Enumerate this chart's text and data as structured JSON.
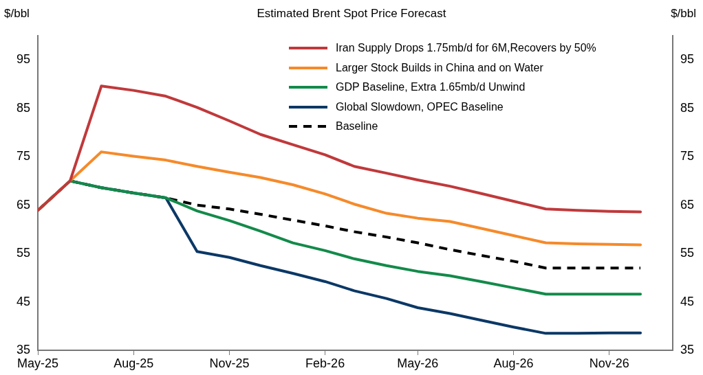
{
  "chart_data": {
    "type": "line",
    "title": "Estimated Brent Spot Price Forecast",
    "ylabel": "$/bbl",
    "y2label": "$/bbl",
    "x": [
      "2025-05",
      "2025-06",
      "2025-07",
      "2025-08",
      "2025-09",
      "2025-10",
      "2025-11",
      "2025-12",
      "2026-01",
      "2026-02",
      "2026-03",
      "2026-04",
      "2026-05",
      "2026-06",
      "2026-07",
      "2026-08",
      "2026-09",
      "2026-10",
      "2026-11",
      "2026-12"
    ],
    "series": [
      {
        "name": "Iran Supply Drops 1.75mb/d for 6M,Recovers by 50%",
        "color": "#c0393b",
        "line_style": "solid",
        "values": [
          63.9,
          70,
          89.6,
          88.7,
          87.5,
          85.2,
          82.4,
          79.6,
          77.5,
          75.4,
          73.0,
          71.6,
          70.2,
          68.9,
          67.4,
          65.8,
          64.2,
          63.9,
          63.7,
          63.6
        ]
      },
      {
        "name": "Larger Stock Builds in China and on Water",
        "color": "#f58a2a",
        "line_style": "solid",
        "values": [
          63.9,
          70,
          76.0,
          75.1,
          74.3,
          73.0,
          71.8,
          70.7,
          69.2,
          67.3,
          65.2,
          63.3,
          62.3,
          61.6,
          60.2,
          58.7,
          57.2,
          57.0,
          56.9,
          56.8
        ]
      },
      {
        "name": "GDP Baseline, Extra 1.65mb/d Unwind",
        "color": "#138a4a",
        "line_style": "solid",
        "values": [
          63.9,
          70,
          68.6,
          67.5,
          66.5,
          63.8,
          61.8,
          59.6,
          57.2,
          55.6,
          53.9,
          52.5,
          51.3,
          50.4,
          49.2,
          47.9,
          46.6,
          46.6,
          46.6,
          46.6
        ]
      },
      {
        "name": "Global Slowdown, OPEC Baseline",
        "color": "#0b3866",
        "line_style": "solid",
        "values": [
          63.9,
          70,
          68.6,
          67.5,
          66.5,
          55.4,
          54.2,
          52.5,
          50.9,
          49.2,
          47.3,
          45.7,
          43.8,
          42.6,
          41.2,
          39.8,
          38.5,
          38.5,
          38.6,
          38.6
        ]
      },
      {
        "name": "Baseline",
        "color": "#000000",
        "line_style": "dashed",
        "values": [
          63.9,
          70,
          68.6,
          67.5,
          66.5,
          65.0,
          64.2,
          63.1,
          61.9,
          60.7,
          59.5,
          58.4,
          57.2,
          55.8,
          54.6,
          53.4,
          52.0,
          52.0,
          52.0,
          52.0
        ]
      }
    ],
    "xlim": [
      "2025-05",
      "2027-01"
    ],
    "xticks": [
      {
        "value": "2025-05",
        "label": "May-25"
      },
      {
        "value": "2025-08",
        "label": "Aug-25"
      },
      {
        "value": "2025-11",
        "label": "Nov-25"
      },
      {
        "value": "2026-02",
        "label": "Feb-26"
      },
      {
        "value": "2026-05",
        "label": "May-26"
      },
      {
        "value": "2026-08",
        "label": "Aug-26"
      },
      {
        "value": "2026-11",
        "label": "Nov-26"
      }
    ],
    "ylim": [
      35,
      100
    ],
    "yticks": [
      35,
      45,
      55,
      65,
      75,
      85,
      95
    ],
    "y2lim": [
      35,
      100
    ],
    "y2ticks": [
      35,
      45,
      55,
      65,
      75,
      85,
      95
    ],
    "grid": false,
    "legend": "top right",
    "marker": "none"
  }
}
